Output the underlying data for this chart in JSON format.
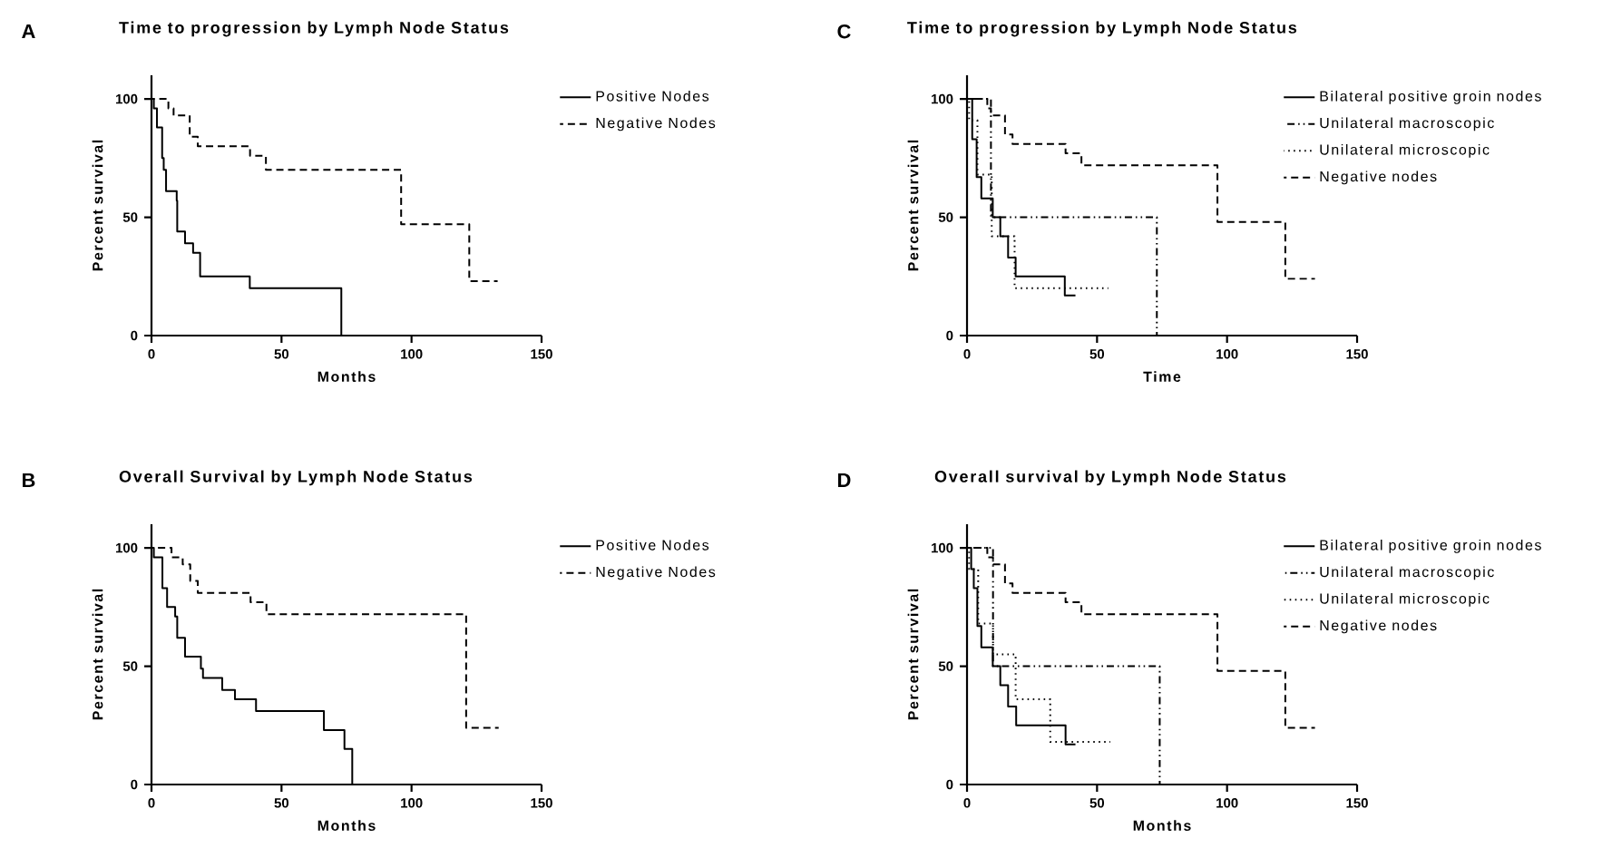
{
  "chart_data": [
    {
      "type": "step",
      "title": "Time to progression by Lymph Node Status",
      "xlabel": "Months",
      "ylabel": "Percent survival",
      "annotations": [
        "A"
      ],
      "xlim": [
        0,
        150
      ],
      "ylim": [
        0,
        110
      ],
      "xticks": [
        0,
        50,
        100,
        150
      ],
      "yticks": [
        0,
        50,
        100
      ],
      "legend": "right",
      "series": [
        {
          "name": "Positive Nodes",
          "color": "#000000",
          "line_style": "solid",
          "x": [
            0,
            0.9,
            2.1,
            4.1,
            4.7,
            5.6,
            9.7,
            9.9,
            12.9,
            16,
            18.7,
            37.8,
            73
          ],
          "values": [
            100,
            96,
            88,
            75,
            70,
            61,
            57,
            44,
            39,
            35,
            25,
            20,
            0
          ]
        },
        {
          "name": "Negative Nodes",
          "color": "#000000",
          "line_style": "dashed",
          "x": [
            0,
            6.5,
            8.5,
            14.7,
            17.8,
            37.9,
            44,
            96,
            122.2,
            133.1
          ],
          "values": [
            100,
            96,
            93,
            84,
            80,
            76,
            70,
            47,
            23,
            23
          ]
        }
      ]
    },
    {
      "type": "step",
      "title": "Overall Survival by Lymph Node Status",
      "xlabel": "Months",
      "ylabel": "Percent survival",
      "annotations": [
        "B"
      ],
      "xlim": [
        0,
        150
      ],
      "ylim": [
        0,
        110
      ],
      "xticks": [
        0,
        50,
        100,
        150
      ],
      "yticks": [
        0,
        50,
        100
      ],
      "legend": "right",
      "series": [
        {
          "name": "Positive Nodes",
          "color": "#000000",
          "line_style": "solid",
          "x": [
            0,
            0.9,
            4.2,
            6,
            9.1,
            9.9,
            12.9,
            19,
            19.8,
            27.2,
            32.1,
            40.2,
            66.3,
            74.2,
            77.2
          ],
          "values": [
            100,
            96,
            83,
            75,
            71,
            62,
            54,
            49,
            45,
            40,
            36,
            31,
            23,
            15,
            0
          ]
        },
        {
          "name": "Negative Nodes",
          "color": "#000000",
          "line_style": "dashed",
          "x": [
            0,
            7.7,
            12,
            14.9,
            17.8,
            38.1,
            44.2,
            121,
            133.5
          ],
          "values": [
            100,
            96,
            93,
            86,
            81,
            77,
            72,
            24,
            24
          ]
        }
      ]
    },
    {
      "type": "step",
      "title": "Time to progression by Lymph Node Status",
      "xlabel": "Time",
      "ylabel": "Percent survival",
      "annotations": [
        "C"
      ],
      "xlim": [
        0,
        150
      ],
      "ylim": [
        0,
        110
      ],
      "xticks": [
        0,
        50,
        100,
        150
      ],
      "yticks": [
        0,
        50,
        100
      ],
      "legend": "top right",
      "series": [
        {
          "name": "Bilateral positive groin nodes",
          "color": "#000000",
          "line_style": "solid",
          "x": [
            0,
            2,
            3.7,
            5.5,
            9.9,
            12.8,
            15.8,
            18.7,
            37.6,
            41.7
          ],
          "values": [
            100,
            83,
            67,
            58,
            50,
            42,
            33,
            25,
            17,
            17
          ]
        },
        {
          "name": "Unilateral macroscopic",
          "color": "#000000",
          "line_style": "dashdotdotted",
          "x": [
            0,
            9.2,
            73
          ],
          "values": [
            100,
            50,
            0
          ]
        },
        {
          "name": "Unilateral microscopic",
          "color": "#000000",
          "line_style": "dotted",
          "x": [
            0,
            0.8,
            4,
            9.5,
            18.3,
            54.3
          ],
          "values": [
            100,
            91,
            68,
            42,
            20,
            20
          ]
        },
        {
          "name": "Negative nodes",
          "color": "#000000",
          "line_style": "dashed",
          "x": [
            0,
            7.8,
            9.2,
            14.6,
            17.5,
            37.9,
            44,
            96.3,
            122.4,
            133.8
          ],
          "values": [
            100,
            96,
            93,
            85,
            81,
            77,
            72,
            48,
            24,
            24
          ]
        }
      ]
    },
    {
      "type": "step",
      "title": "Overall survival by Lymph Node Status",
      "xlabel": "Months",
      "ylabel": "Percent survival",
      "annotations": [
        "D"
      ],
      "xlim": [
        0,
        150
      ],
      "ylim": [
        0,
        110
      ],
      "xticks": [
        0,
        50,
        100,
        150
      ],
      "yticks": [
        0,
        50,
        100
      ],
      "legend": "top right",
      "series": [
        {
          "name": "Bilateral positive groin nodes",
          "color": "#000000",
          "line_style": "solid",
          "x": [
            0,
            1.6,
            2.6,
            4,
            5.5,
            9.9,
            12.8,
            15.8,
            18.9,
            37.9,
            41.7
          ],
          "values": [
            100,
            91,
            83,
            67,
            58,
            50,
            42,
            33,
            25,
            17,
            17
          ]
        },
        {
          "name": "Unilateral macroscopic",
          "color": "#000000",
          "line_style": "dashdotdotted",
          "x": [
            0,
            10,
            74.1
          ],
          "values": [
            100,
            50,
            0
          ]
        },
        {
          "name": "Unilateral microscopic",
          "color": "#000000",
          "line_style": "dotted",
          "x": [
            0,
            0.8,
            4.3,
            10,
            18.7,
            32,
            55.1
          ],
          "values": [
            100,
            91,
            68,
            55,
            36,
            18,
            18
          ]
        },
        {
          "name": "Negative nodes",
          "color": "#000000",
          "line_style": "dashed",
          "x": [
            0,
            7.8,
            10,
            14.6,
            17.5,
            37.9,
            44,
            96.3,
            122.4,
            133.8
          ],
          "values": [
            100,
            96,
            93,
            85,
            81,
            77,
            72,
            48,
            24,
            24
          ]
        }
      ]
    }
  ]
}
